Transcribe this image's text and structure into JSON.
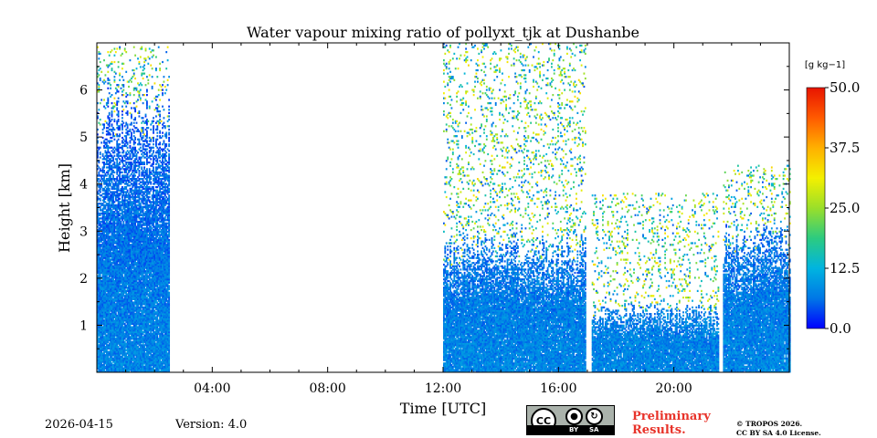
{
  "chart_data": {
    "type": "heatmap",
    "title": "Water vapour mixing ratio of pollyxt_tjk at Dushanbe",
    "xlabel": "Time [UTC]",
    "ylabel": "Height [km]",
    "x_unit": "hours UTC",
    "xlim": [
      0,
      24
    ],
    "ylim": [
      0,
      7
    ],
    "xticks": [
      4,
      8,
      12,
      16,
      20
    ],
    "xtick_labels": [
      "04:00",
      "08:00",
      "12:00",
      "16:00",
      "20:00"
    ],
    "yticks": [
      1,
      2,
      3,
      4,
      5,
      6
    ],
    "ytick_labels": [
      "1",
      "2",
      "3",
      "4",
      "5",
      "6"
    ],
    "colorbar": {
      "label": "[g kg−1]",
      "range": [
        0,
        50
      ],
      "ticks": [
        0.0,
        12.5,
        25.0,
        37.5,
        50.0
      ],
      "tick_labels": [
        "0.0",
        "12.5",
        "25.0",
        "37.5",
        "50.0"
      ],
      "colors": [
        "#0000ff",
        "#0077e6",
        "#00b4e0",
        "#2ccb80",
        "#9adf2a",
        "#f4f000",
        "#ffb000",
        "#ff5a00",
        "#e81400"
      ]
    },
    "segments": [
      {
        "start_hour": 0.0,
        "end_hour": 2.5,
        "base_value_gkg": 7,
        "signal_top_km": 5.5,
        "noise_top_km": 6.9
      },
      {
        "start_hour": 12.0,
        "end_hour": 16.95,
        "base_value_gkg": 7,
        "signal_top_km": 2.6,
        "noise_top_km": 7.0
      },
      {
        "start_hour": 17.15,
        "end_hour": 21.55,
        "base_value_gkg": 7,
        "signal_top_km": 1.3,
        "noise_top_km": 3.8
      },
      {
        "start_hour": 21.7,
        "end_hour": 24.0,
        "base_value_gkg": 7,
        "signal_top_km": 2.9,
        "noise_top_km": 4.4
      }
    ],
    "no_data_gaps": [
      [
        2.5,
        12.0
      ],
      [
        16.95,
        17.15
      ],
      [
        21.55,
        21.7
      ]
    ]
  },
  "footer": {
    "date": "2026-04-15",
    "version": "Version: 4.0",
    "license_badge": {
      "cc": "CC",
      "by": "BY",
      "sa": "SA"
    },
    "preliminary_line1": "Preliminary",
    "preliminary_line2": "Results.",
    "copyright_line1": "© TROPOS 2026.",
    "copyright_line2": "CC BY SA 4.0 License."
  }
}
